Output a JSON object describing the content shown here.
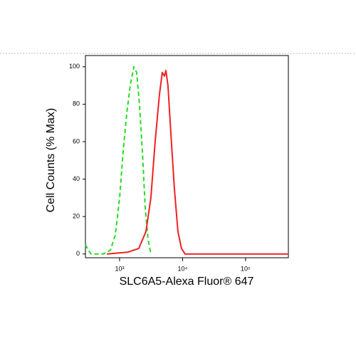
{
  "chart_data": {
    "type": "line",
    "xlabel": "SLC6A5-Alexa Fluor® 647",
    "ylabel": "Cell Counts (% Max)",
    "xscale": "log",
    "xlim": [
      287,
      478000
    ],
    "ylim": [
      -2,
      106
    ],
    "xticks": [
      {
        "value": 1000,
        "label": "10³"
      },
      {
        "value": 10000,
        "label": "10⁴"
      },
      {
        "value": 100000,
        "label": "10⁵"
      }
    ],
    "yticks": [
      0,
      20,
      40,
      60,
      80,
      100
    ],
    "series": [
      {
        "color": "#22dd22",
        "style": "dashed",
        "x": [
          287,
          318,
          353,
          549,
          713,
          855,
          1000,
          1139,
          1297,
          1477,
          1683,
          1867,
          2071,
          2300,
          2550,
          2830,
          3140
        ],
        "values": [
          5,
          2,
          0,
          0,
          2,
          10,
          30,
          55,
          75,
          90,
          100,
          97,
          80,
          55,
          25,
          8,
          0
        ]
      },
      {
        "color": "#ee2222",
        "style": "solid",
        "x": [
          626,
          1366,
          2016,
          2620,
          3140,
          3670,
          4290,
          4760,
          5150,
          5430,
          5860,
          6510,
          7410,
          8430,
          9600,
          10930,
          478000
        ],
        "values": [
          0,
          1,
          3,
          12,
          30,
          60,
          85,
          97,
          95,
          98,
          90,
          65,
          35,
          12,
          3,
          0,
          0
        ]
      }
    ]
  }
}
